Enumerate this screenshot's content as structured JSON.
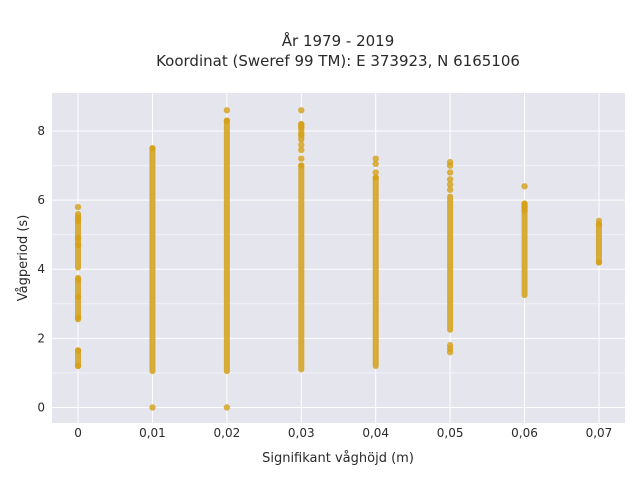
{
  "chart_data": {
    "type": "scatter",
    "title_line1": "År 1979 - 2019",
    "title_line2": "Koordinat (Sweref 99 TM): E 373923, N 6165106",
    "xlabel": "Signifikant våghöjd (m)",
    "ylabel": "Vågperiod (s)",
    "x_tick_labels": [
      "0",
      "0,01",
      "0,02",
      "0,03",
      "0,04",
      "0,05",
      "0,06",
      "0,07"
    ],
    "x_ticks": [
      0,
      0.01,
      0.02,
      0.03,
      0.04,
      0.05,
      0.06,
      0.07
    ],
    "y_tick_labels": [
      "0",
      "2",
      "4",
      "6",
      "8"
    ],
    "y_ticks": [
      0,
      2,
      4,
      6,
      8
    ],
    "xlim": [
      -0.0035,
      0.0735
    ],
    "ylim": [
      -0.45,
      9.1
    ],
    "grid": true,
    "marker_color": "#D4A017",
    "plot_background": "#E5E5EE",
    "series": [
      {
        "x": 0,
        "segments": [
          [
            1.2,
            1.65
          ],
          [
            2.55,
            3.75
          ],
          [
            4.05,
            5.6
          ]
        ],
        "points": [
          5.8,
          5.5,
          5.4,
          4.9,
          4.7,
          3.7,
          3.2,
          2.6,
          1.65,
          1.2
        ]
      },
      {
        "x": 0.01,
        "segments": [
          [
            1.05,
            7.5
          ]
        ],
        "points": [
          0.0,
          7.5
        ]
      },
      {
        "x": 0.02,
        "segments": [
          [
            1.05,
            8.3
          ]
        ],
        "points": [
          0.0,
          8.6,
          8.3
        ]
      },
      {
        "x": 0.03,
        "segments": [
          [
            1.1,
            7.0
          ],
          [
            7.75,
            8.2
          ]
        ],
        "points": [
          8.6,
          8.2,
          8.1,
          7.9,
          7.6,
          7.45,
          7.2,
          7.0
        ]
      },
      {
        "x": 0.04,
        "segments": [
          [
            1.2,
            6.65
          ]
        ],
        "points": [
          7.2,
          7.05,
          6.8,
          6.65
        ]
      },
      {
        "x": 0.05,
        "segments": [
          [
            2.25,
            6.1
          ]
        ],
        "points": [
          7.1,
          7.0,
          6.8,
          6.6,
          6.45,
          6.3,
          1.8,
          1.7,
          1.6
        ]
      },
      {
        "x": 0.06,
        "segments": [
          [
            3.25,
            5.9
          ]
        ],
        "points": [
          6.4,
          5.9,
          5.8,
          5.7
        ]
      },
      {
        "x": 0.07,
        "segments": [
          [
            4.2,
            5.3
          ]
        ],
        "points": [
          5.4,
          5.3,
          4.2
        ]
      }
    ]
  }
}
